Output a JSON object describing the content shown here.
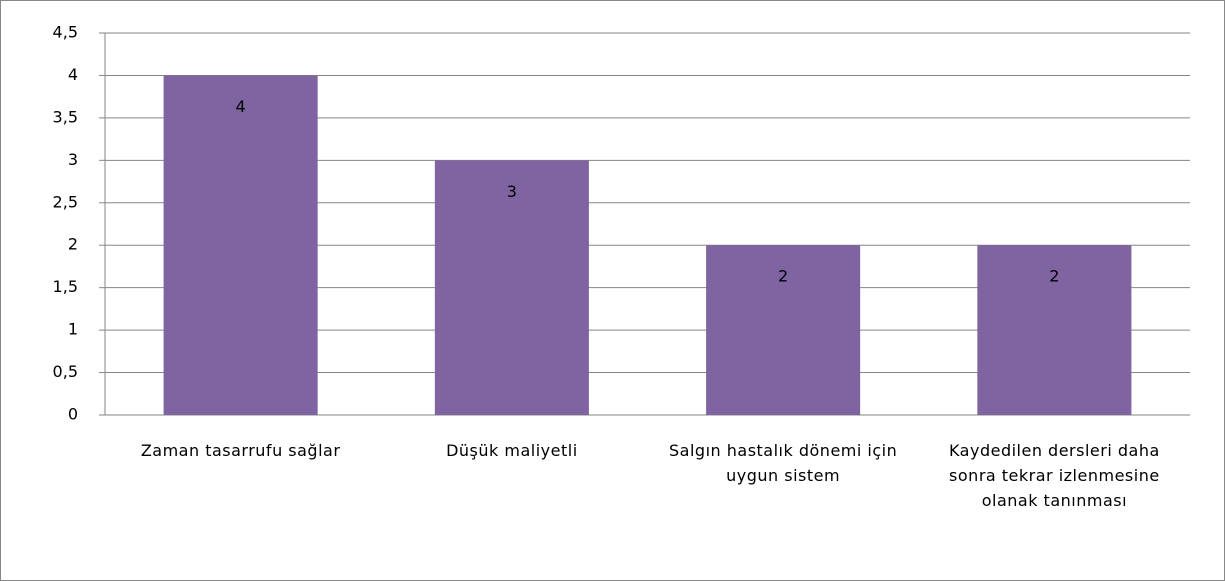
{
  "chart_data": {
    "type": "bar",
    "categories": [
      "Zaman tasarrufu sağlar",
      "Düşük maliyetli",
      "Salgın hastalık dönemi için uygun sistem",
      "Kaydedilen dersleri daha sonra tekrar izlenmesine olanak tanınması"
    ],
    "values": [
      4,
      3,
      2,
      2
    ],
    "color": "#8064a2",
    "ylim": [
      0,
      4.5
    ],
    "yticks": [
      0,
      {
        "value": 0.5,
        "label": "0,5"
      },
      1,
      {
        "value": 1.5,
        "label": "1,5"
      },
      2,
      {
        "value": 2.5,
        "label": "2,5"
      },
      3,
      {
        "value": 3.5,
        "label": "3,5"
      },
      4,
      {
        "value": 4.5,
        "label": "4,5"
      }
    ],
    "grid": true
  }
}
